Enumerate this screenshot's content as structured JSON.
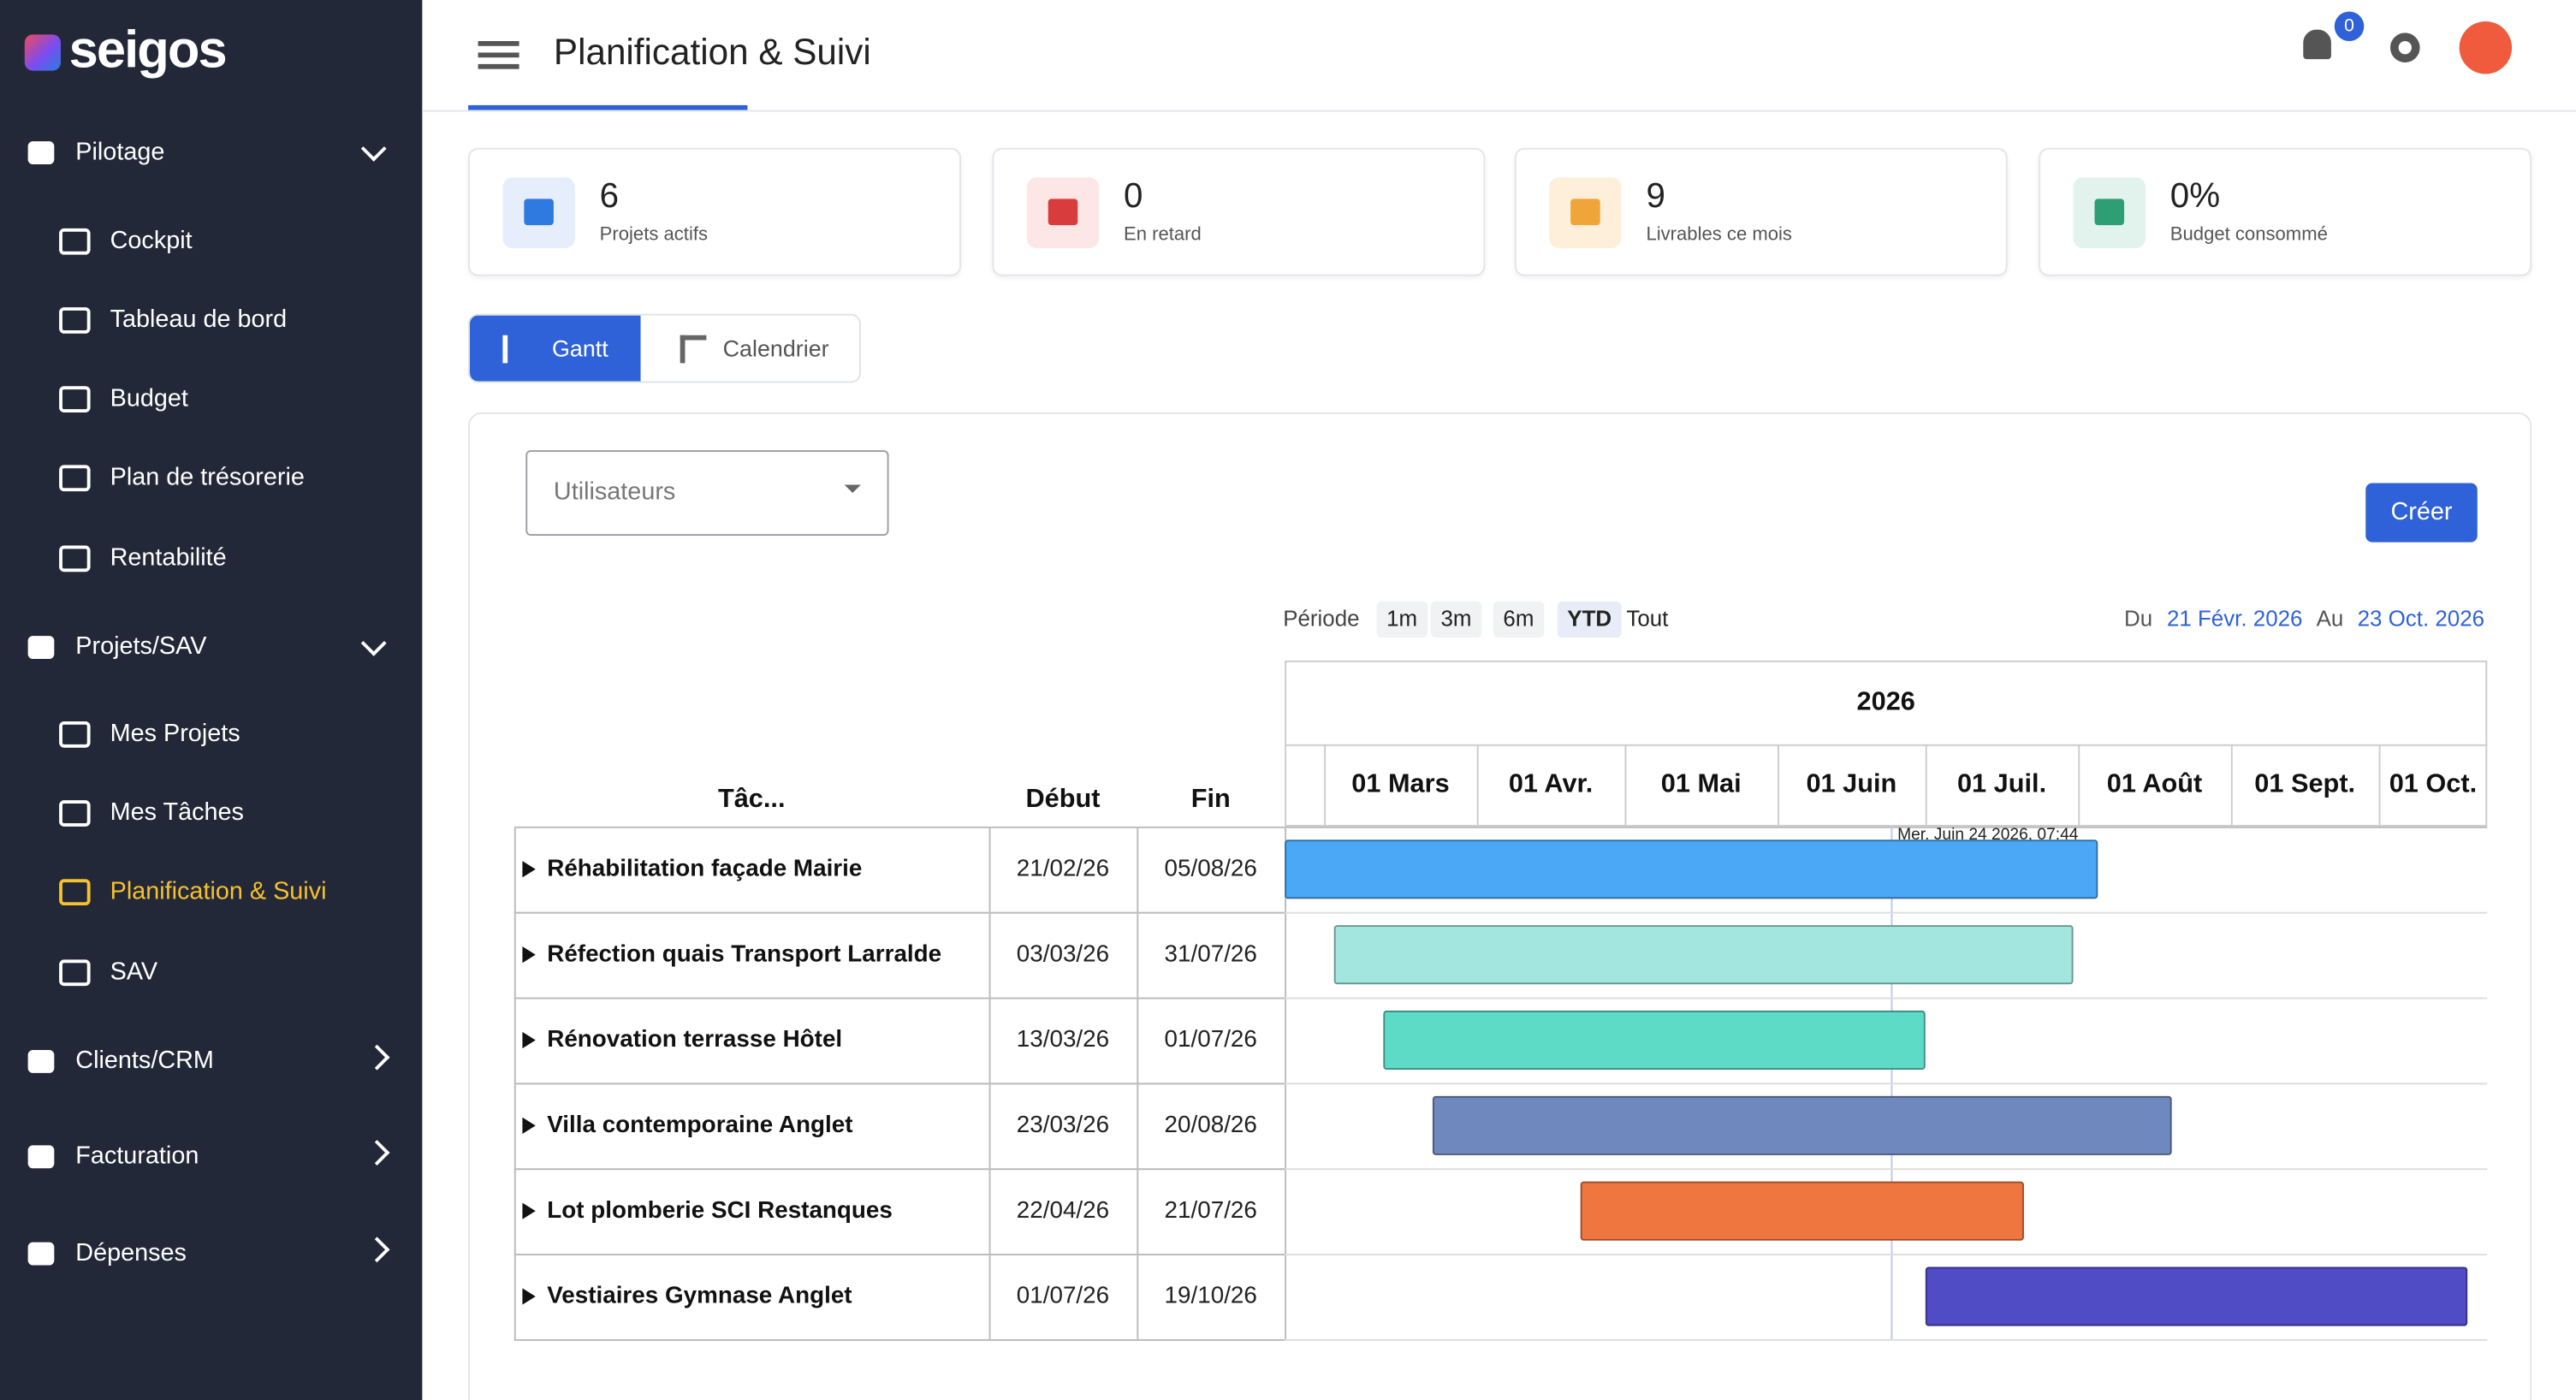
{
  "sidebar": {
    "logo": "seigos",
    "sections": [
      {
        "label": "Pilotage",
        "items": [
          "Cockpit",
          "Tableau de bord",
          "Budget",
          "Plan de trésorerie",
          "Rentabilité"
        ]
      },
      {
        "label": "Projets/SAV",
        "items": [
          "Mes Projets",
          "Mes Tâches",
          "Planification & Suivi",
          "SAV"
        ]
      },
      {
        "label": "Clients/CRM"
      },
      {
        "label": "Facturation"
      },
      {
        "label": "Dépenses"
      }
    ],
    "active": "Planification & Suivi"
  },
  "header": {
    "title": "Planification & Suivi",
    "notification_count": "0"
  },
  "stats": [
    {
      "value": "6",
      "label": "Projets actifs"
    },
    {
      "value": "0",
      "label": "En retard"
    },
    {
      "value": "9",
      "label": "Livrables ce mois"
    },
    {
      "value": "0%",
      "label": "Budget consommé"
    }
  ],
  "tabs": [
    "Gantt",
    "Calendrier"
  ],
  "filter": {
    "placeholder": "Utilisateurs"
  },
  "create_button": "Créer",
  "period": {
    "label": "Période",
    "options": [
      "1m",
      "3m",
      "6m",
      "YTD",
      "Tout"
    ],
    "active": "YTD",
    "from_label": "Du",
    "from": "21 Févr. 2026",
    "to_label": "Au",
    "to": "23 Oct. 2026"
  },
  "gantt": {
    "year": "2026",
    "months": [
      "01 Mars",
      "01 Avr.",
      "01 Mai",
      "01 Juin",
      "01 Juil.",
      "01 Août",
      "01 Sept.",
      "01 Oct."
    ],
    "columns": [
      "Tâc...",
      "Début",
      "Fin"
    ],
    "today": "Mer. Juin 24 2026, 07:44",
    "tasks": [
      {
        "name": "Réhabilitation façade Mairie",
        "start": "21/02/26",
        "end": "05/08/26",
        "color": "#4aa8f7"
      },
      {
        "name": "Réfection quais Transport Larralde",
        "start": "03/03/26",
        "end": "31/07/26",
        "color": "#a2e6df"
      },
      {
        "name": "Rénovation terrasse Hôtel",
        "start": "13/03/26",
        "end": "01/07/26",
        "color": "#5ddbc6"
      },
      {
        "name": "Villa contemporaine Anglet",
        "start": "23/03/26",
        "end": "20/08/26",
        "color": "#6f88bd"
      },
      {
        "name": "Lot plomberie SCI Restanques",
        "start": "22/04/26",
        "end": "21/07/26",
        "color": "#f07640"
      },
      {
        "name": "Vestiaires Gymnase Anglet",
        "start": "01/07/26",
        "end": "19/10/26",
        "color": "#4f4cc6"
      }
    ]
  }
}
